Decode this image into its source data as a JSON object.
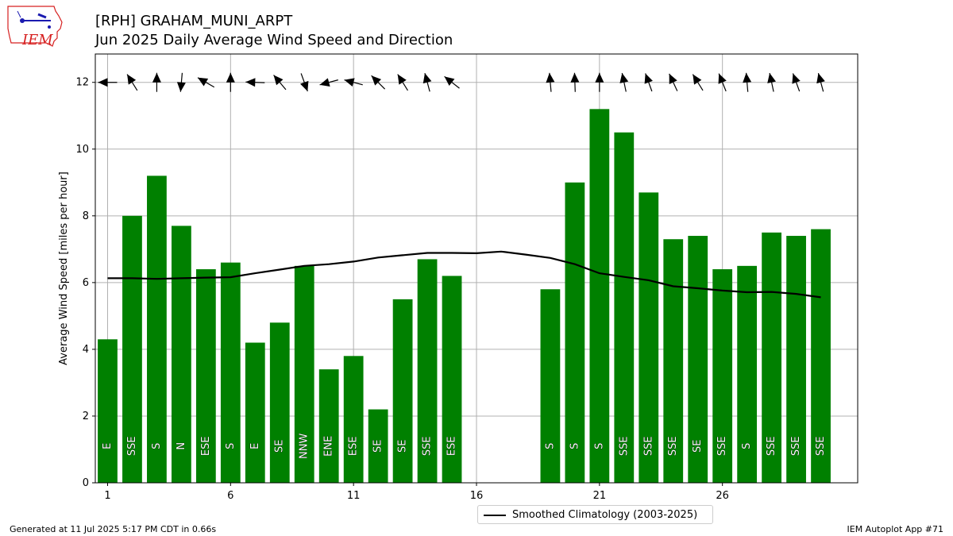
{
  "header": {
    "title_line1": "[RPH] GRAHAM_MUNI_ARPT",
    "title_line2": "Jun 2025 Daily Average Wind Speed and Direction"
  },
  "logo": {
    "text": "IEM",
    "color": "#d62020"
  },
  "footer": {
    "left": "Generated at 11 Jul 2025 5:17 PM CDT in 0.66s",
    "right": "IEM Autoplot App #71"
  },
  "legend": {
    "climatology_label": "Smoothed Climatology (2003-2025)"
  },
  "chart_data": {
    "type": "bar",
    "ylabel": "Average Wind Speed [miles per hour]",
    "xlabel": "",
    "xlim": [
      0.5,
      31.5
    ],
    "ylim": [
      0,
      12.85
    ],
    "xticks": [
      1,
      6,
      11,
      16,
      21,
      26
    ],
    "yticks": [
      0,
      2,
      4,
      6,
      8,
      10,
      12
    ],
    "grid": true,
    "bar_color": "#008000",
    "legend_position": "bottom-center",
    "days": [
      {
        "day": 1,
        "speed": 4.3,
        "dir": "E",
        "arrow_deg": 90
      },
      {
        "day": 2,
        "speed": 8.0,
        "dir": "SSE",
        "arrow_deg": 148
      },
      {
        "day": 3,
        "speed": 9.2,
        "dir": "S",
        "arrow_deg": 180
      },
      {
        "day": 4,
        "speed": 7.7,
        "dir": "N",
        "arrow_deg": 5
      },
      {
        "day": 5,
        "speed": 6.4,
        "dir": "ESE",
        "arrow_deg": 120
      },
      {
        "day": 6,
        "speed": 6.6,
        "dir": "S",
        "arrow_deg": 180
      },
      {
        "day": 7,
        "speed": 4.2,
        "dir": "E",
        "arrow_deg": 92
      },
      {
        "day": 8,
        "speed": 4.8,
        "dir": "SE",
        "arrow_deg": 140
      },
      {
        "day": 9,
        "speed": 6.5,
        "dir": "NNW",
        "arrow_deg": 340
      },
      {
        "day": 10,
        "speed": 3.4,
        "dir": "ENE",
        "arrow_deg": 75
      },
      {
        "day": 11,
        "speed": 3.8,
        "dir": "ESE",
        "arrow_deg": 105
      },
      {
        "day": 12,
        "speed": 2.2,
        "dir": "SE",
        "arrow_deg": 135
      },
      {
        "day": 13,
        "speed": 5.5,
        "dir": "SE",
        "arrow_deg": 148
      },
      {
        "day": 14,
        "speed": 6.7,
        "dir": "SSE",
        "arrow_deg": 165
      },
      {
        "day": 15,
        "speed": 6.2,
        "dir": "ESE",
        "arrow_deg": 128
      },
      {
        "day": 19,
        "speed": 5.8,
        "dir": "S",
        "arrow_deg": 175
      },
      {
        "day": 20,
        "speed": 9.0,
        "dir": "S",
        "arrow_deg": 178
      },
      {
        "day": 21,
        "speed": 11.2,
        "dir": "S",
        "arrow_deg": 180
      },
      {
        "day": 22,
        "speed": 10.5,
        "dir": "SSE",
        "arrow_deg": 168
      },
      {
        "day": 23,
        "speed": 8.7,
        "dir": "SSE",
        "arrow_deg": 160
      },
      {
        "day": 24,
        "speed": 7.3,
        "dir": "SSE",
        "arrow_deg": 155
      },
      {
        "day": 25,
        "speed": 7.4,
        "dir": "SE",
        "arrow_deg": 148
      },
      {
        "day": 26,
        "speed": 6.4,
        "dir": "SSE",
        "arrow_deg": 158
      },
      {
        "day": 27,
        "speed": 6.5,
        "dir": "S",
        "arrow_deg": 175
      },
      {
        "day": 28,
        "speed": 7.5,
        "dir": "SSE",
        "arrow_deg": 168
      },
      {
        "day": 29,
        "speed": 7.4,
        "dir": "SSE",
        "arrow_deg": 160
      },
      {
        "day": 30,
        "speed": 7.6,
        "dir": "SSE",
        "arrow_deg": 165
      }
    ],
    "climatology": {
      "name": "Smoothed Climatology (2003-2025)",
      "color": "#000000",
      "x": [
        1,
        2,
        3,
        4,
        5,
        6,
        7,
        8,
        9,
        10,
        11,
        12,
        13,
        14,
        15,
        16,
        17,
        18,
        19,
        20,
        21,
        22,
        23,
        24,
        25,
        26,
        27,
        28,
        29,
        30
      ],
      "y": [
        6.13,
        6.13,
        6.11,
        6.13,
        6.15,
        6.16,
        6.28,
        6.39,
        6.5,
        6.55,
        6.63,
        6.75,
        6.82,
        6.89,
        6.89,
        6.88,
        6.93,
        6.84,
        6.74,
        6.55,
        6.28,
        6.17,
        6.07,
        5.89,
        5.83,
        5.76,
        5.71,
        5.72,
        5.66,
        5.56
      ]
    }
  }
}
